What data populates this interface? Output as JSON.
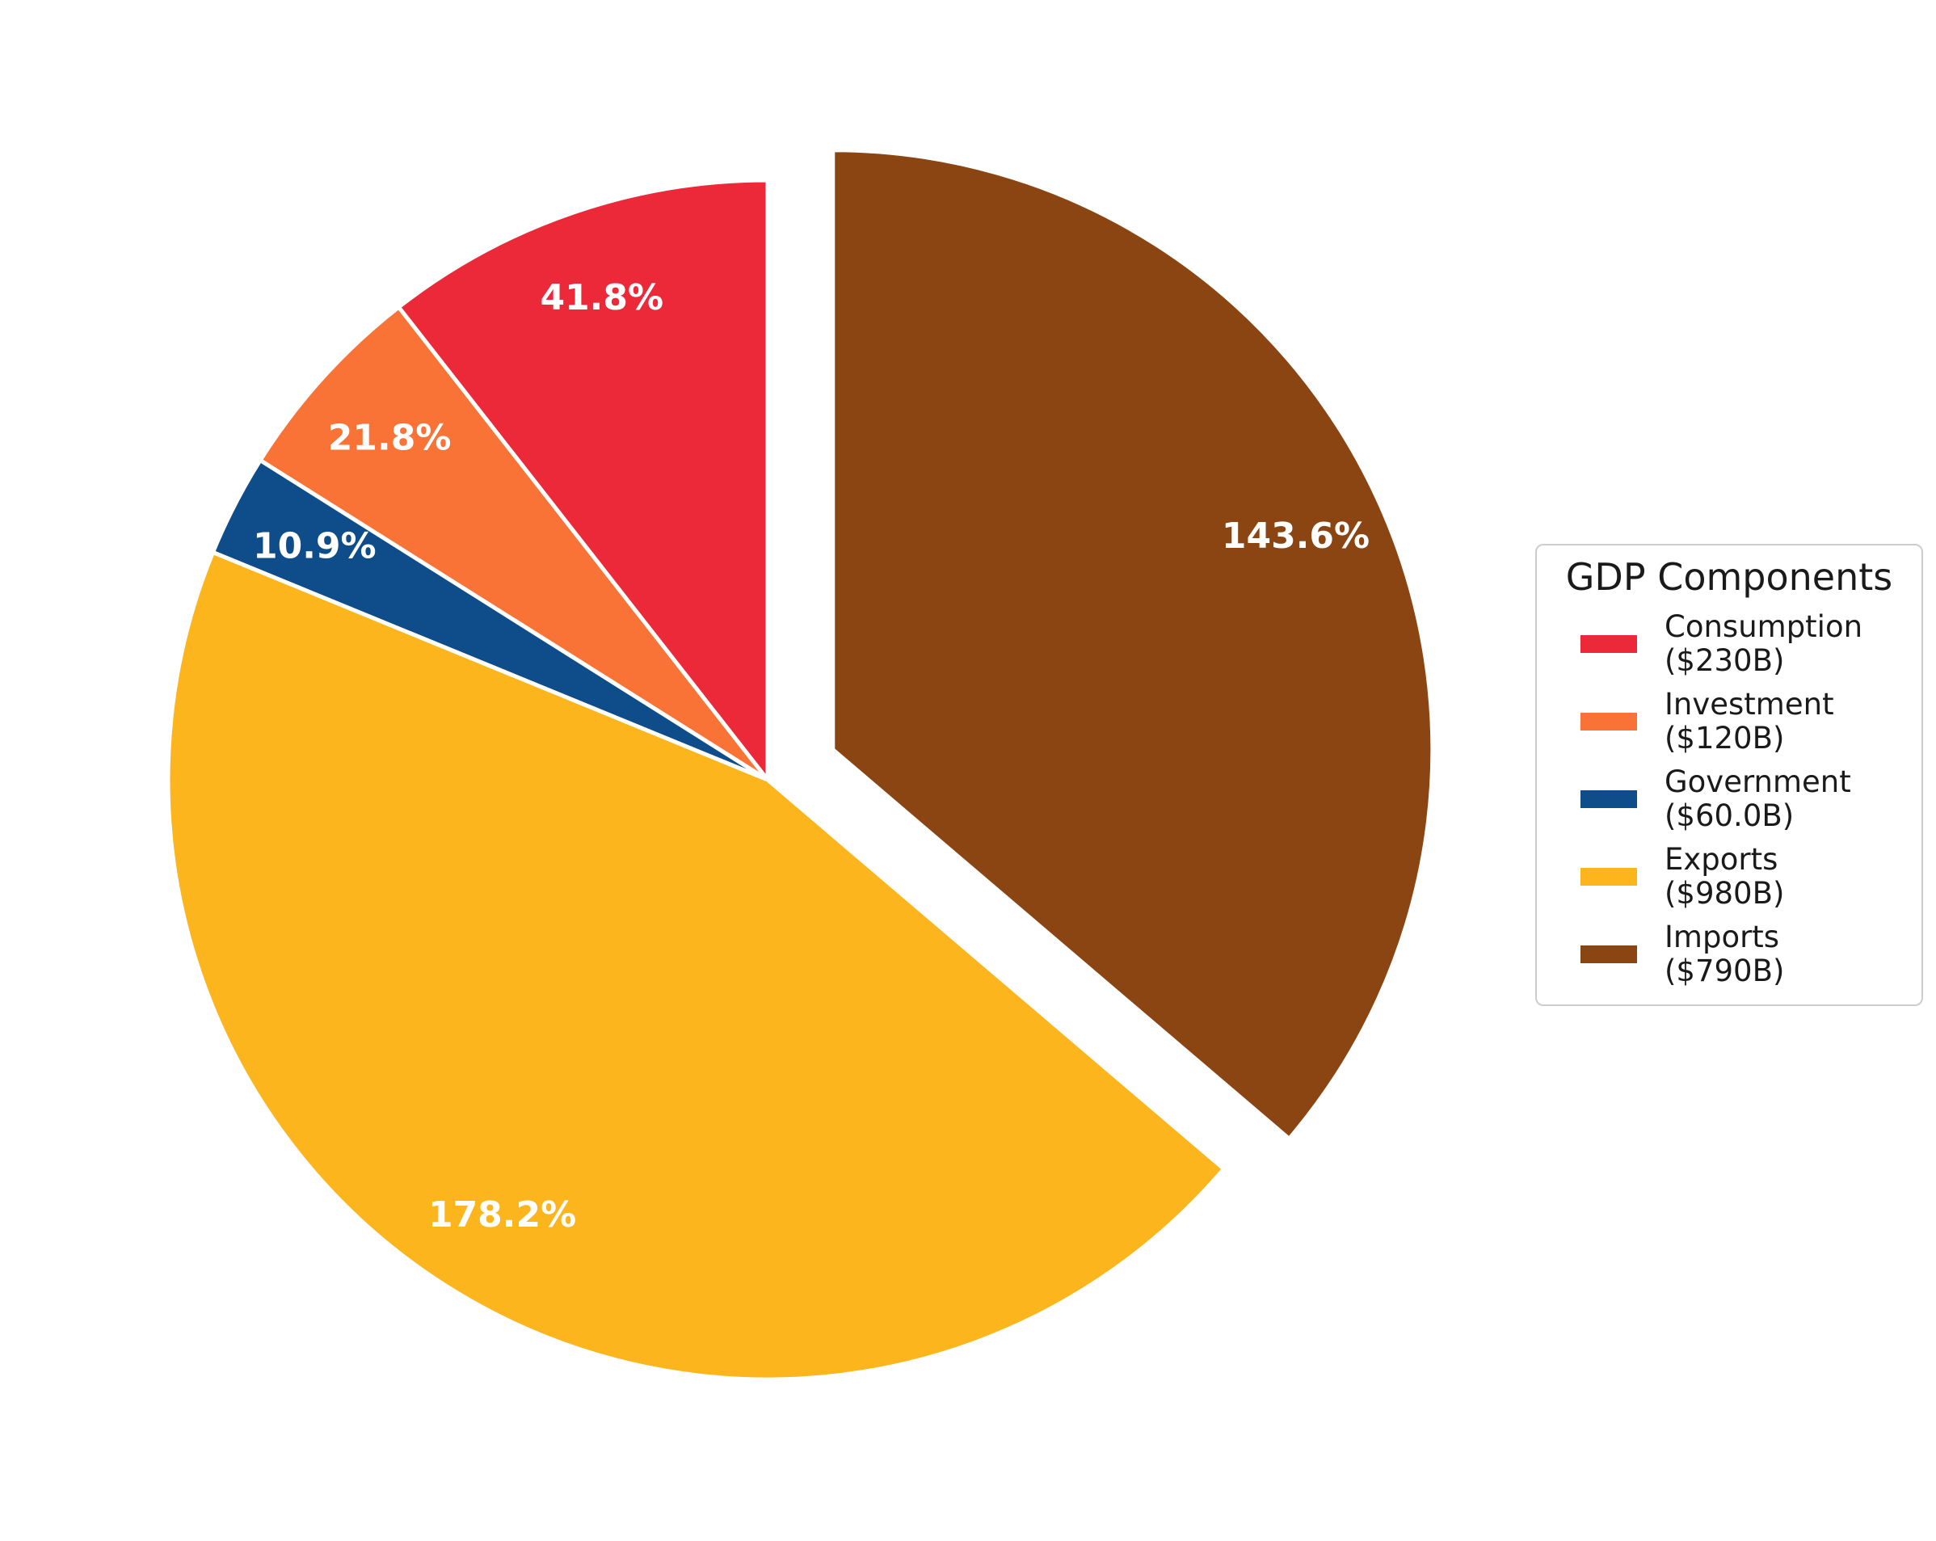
{
  "chart_data": {
    "type": "pie",
    "legend_title": "GDP Components",
    "legend_position": "center right",
    "startangle": 90,
    "counterclock": true,
    "pctdistance": 0.85,
    "background": "#FFFFFF",
    "wedge_edge_color": "#FFFFFF",
    "autopct_color": "#FFFFFF",
    "slices": [
      {
        "label": "Consumption",
        "amount_label": "($230B)",
        "value": 230,
        "percent_label": "41.8%",
        "color": "#EC2939",
        "explode": 0
      },
      {
        "label": "Investment",
        "amount_label": "($120B)",
        "value": 120,
        "percent_label": "21.8%",
        "color": "#FA7336",
        "explode": 0
      },
      {
        "label": "Government",
        "amount_label": "($60.0B)",
        "value": 60,
        "percent_label": "10.9%",
        "color": "#0F4D8A",
        "explode": 0
      },
      {
        "label": "Exports",
        "amount_label": "($980B)",
        "value": 980,
        "percent_label": "178.2%",
        "color": "#FCB51C",
        "explode": 0
      },
      {
        "label": "Imports",
        "amount_label": "($790B)",
        "value": 790,
        "percent_label": "143.6%",
        "color": "#8B4513",
        "explode": 0.12
      }
    ]
  }
}
